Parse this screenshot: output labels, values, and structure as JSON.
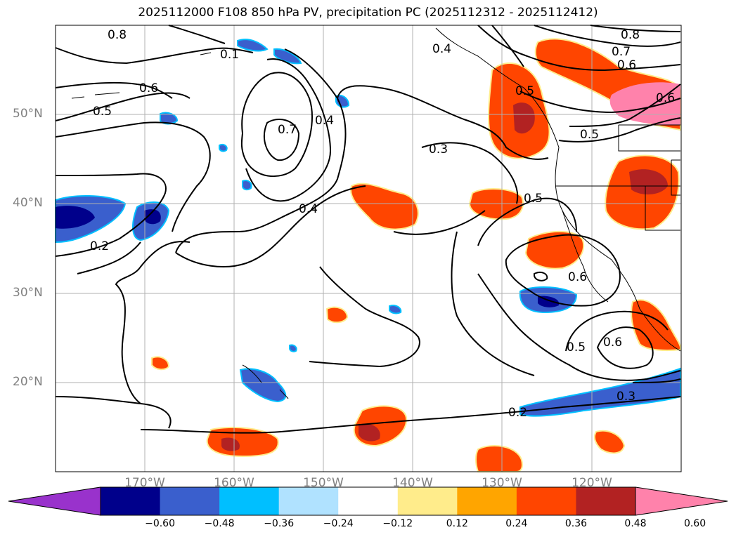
{
  "title": "2025112000 F108 850 hPa PV, precipitation PC (2025112312 - 2025112412)",
  "map": {
    "lat_labels": [
      "50°N",
      "40°N",
      "30°N",
      "20°N"
    ],
    "lon_labels": [
      "170°W",
      "160°W",
      "150°W",
      "140°W",
      "130°W",
      "120°W"
    ],
    "contour_labels": [
      "0.8",
      "0.1",
      "0.6",
      "0.5",
      "0.7",
      "0.4",
      "0.3",
      "0.4",
      "0.2",
      "0.4",
      "0.8",
      "0.7",
      "0.6",
      "0.5",
      "0.5",
      "0.6",
      "0.5",
      "0.6",
      "0.5",
      "0.3",
      "0.2"
    ],
    "colors": {
      "grid": "#b0b0b0",
      "contour": "#000000"
    }
  },
  "colorbar": {
    "ticks": [
      "−0.60",
      "−0.48",
      "−0.36",
      "−0.24",
      "−0.12",
      "0.12",
      "0.24",
      "0.36",
      "0.48",
      "0.60"
    ],
    "colors": [
      "#9932cc",
      "#00008b",
      "#3a5fcd",
      "#00bfff",
      "#b0e2ff",
      "#ffffff",
      "#ffec8b",
      "#ffa500",
      "#ff4500",
      "#b22222",
      "#ff82ab"
    ]
  }
}
